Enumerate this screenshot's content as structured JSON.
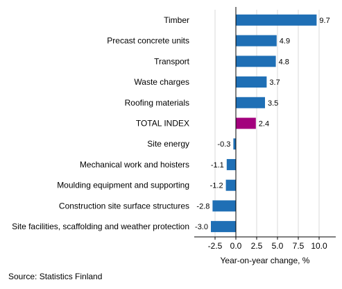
{
  "chart_data": {
    "type": "bar",
    "orientation": "horizontal",
    "categories": [
      "Timber",
      "Precast concrete units",
      "Transport",
      "Waste charges",
      "Roofing materials",
      "TOTAL INDEX",
      "Site energy",
      "Mechanical work and hoisters",
      "Moulding equipment and supporting",
      "Construction site surface structures",
      "Site facilities, scaffolding and weather protection"
    ],
    "values": [
      9.7,
      4.9,
      4.8,
      3.7,
      3.5,
      2.4,
      -0.3,
      -1.1,
      -1.2,
      -2.8,
      -3.0
    ],
    "value_labels": [
      "9.7",
      "4.9",
      "4.8",
      "3.7",
      "3.5",
      "2.4",
      "-0.3",
      "-1.1",
      "-1.2",
      "-2.8",
      "-3.0"
    ],
    "highlight_category": "TOTAL INDEX",
    "xlim": [
      -5,
      12
    ],
    "xticks": [
      -2.5,
      0.0,
      2.5,
      5.0,
      7.5,
      10.0
    ],
    "xtick_labels": [
      "-2.5",
      "0.0",
      "2.5",
      "5.0",
      "7.5",
      "10.0"
    ],
    "xlabel": "Year-on-year change, %",
    "ylabel": "",
    "title": "",
    "grid": "vertical",
    "colors": {
      "bar": "#1f6fb5",
      "highlight": "#a3007d",
      "grid": "#d9d9d9",
      "axis": "#000000"
    }
  },
  "source": "Source: Statistics Finland"
}
